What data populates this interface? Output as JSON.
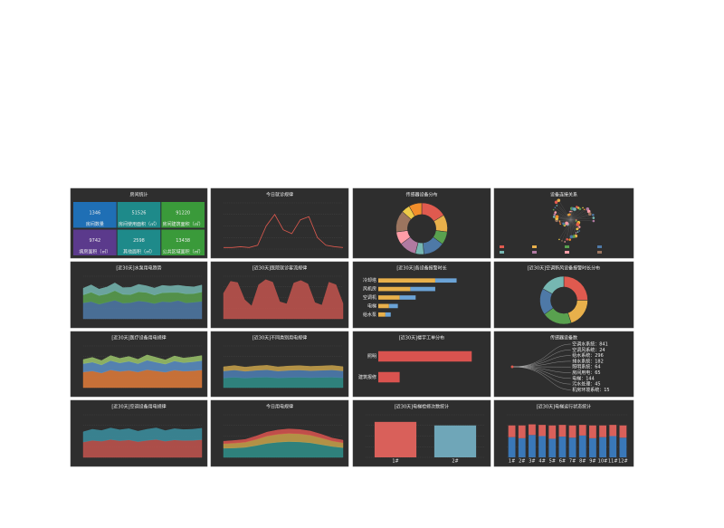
{
  "panels": [
    {
      "title": "房间统计",
      "type": "stats",
      "tiles": [
        {
          "value": 1346,
          "label": "房间数量",
          "color": "#1f6fb5"
        },
        {
          "value": 51526,
          "label": "房间使用面积（㎡）",
          "color": "#1e8a8a"
        },
        {
          "value": 91220,
          "label": "房间建筑面积（㎡）",
          "color": "#3a9a3a"
        },
        {
          "value": 9742,
          "label": "病房面积（㎡）",
          "color": "#5b3a8c"
        },
        {
          "value": 2598,
          "label": "其他面积（㎡）",
          "color": "#1e8a8a"
        },
        {
          "value": 13438,
          "label": "公共区域面积（㎡）",
          "color": "#3a9a3a"
        }
      ]
    },
    {
      "title": "今日就诊规律",
      "type": "line",
      "ylim": [
        0,
        60
      ],
      "series": [
        {
          "color": "#e05a4f",
          "values": [
            2,
            2,
            3,
            2,
            5,
            30,
            45,
            25,
            20,
            38,
            42,
            15,
            5,
            3,
            2
          ]
        }
      ]
    },
    {
      "title": "传感器设备分布",
      "type": "donut",
      "series": [
        {
          "values": [
            6,
            4,
            3,
            5,
            2,
            4,
            3,
            5,
            2,
            3
          ]
        }
      ]
    },
    {
      "title": "设备连接关系",
      "type": "graph"
    },
    {
      "title": "[近30天]水泵用电趋势",
      "type": "area",
      "ylim": [
        0,
        320
      ],
      "series": [
        {
          "color": "#4e79a7",
          "values": [
            120,
            130,
            110,
            125,
            140,
            118,
            122,
            135,
            128,
            115,
            130,
            126,
            138,
            120,
            125,
            132
          ]
        },
        {
          "color": "#59a14f",
          "values": [
            60,
            70,
            65,
            62,
            72,
            66,
            60,
            68,
            70,
            64,
            66,
            72,
            60,
            68,
            65,
            70
          ]
        },
        {
          "color": "#76b7b2",
          "values": [
            50,
            55,
            48,
            52,
            58,
            50,
            54,
            56,
            50,
            52,
            55,
            48,
            54,
            56,
            50,
            52
          ]
        }
      ]
    },
    {
      "title": "[近30天]医院就诊客流规律",
      "type": "area",
      "ylim": [
        0,
        100
      ],
      "series": [
        {
          "color": "#c2544d",
          "values": [
            60,
            88,
            85,
            45,
            30,
            80,
            92,
            86,
            40,
            35,
            84,
            90,
            82,
            38,
            32,
            86,
            80,
            36
          ]
        }
      ]
    },
    {
      "title": "[近30天]各设备报警时长",
      "type": "hbar",
      "xlim": [
        0,
        6000
      ],
      "categories": [
        "冷却塔",
        "风机房",
        "空调机",
        "电梯",
        "给水泵"
      ],
      "series": [
        {
          "color": "#e8b04b",
          "values": [
            3200,
            1800,
            1200,
            600,
            400
          ]
        },
        {
          "color": "#6ba3d6",
          "values": [
            1200,
            1400,
            900,
            500,
            300
          ]
        }
      ]
    },
    {
      "title": "[近30天]空调新风设备报警时长分布",
      "type": "donut",
      "series": [
        {
          "values": [
            25,
            20,
            20,
            18,
            17
          ]
        }
      ]
    },
    {
      "title": "[近30天]医疗设备用电规律",
      "type": "area",
      "ylim": [
        0,
        400
      ],
      "series": [
        {
          "color": "#e07b39",
          "values": [
            150,
            160,
            140,
            170,
            155,
            165,
            150,
            172,
            160,
            148,
            168,
            158,
            162,
            170
          ]
        },
        {
          "color": "#5b8fc7",
          "values": [
            80,
            85,
            78,
            90,
            82,
            88,
            80,
            92,
            84,
            78,
            88,
            82,
            86,
            90
          ]
        },
        {
          "color": "#9bc46b",
          "values": [
            40,
            45,
            42,
            48,
            44,
            46,
            42,
            50,
            46,
            40,
            48,
            44,
            46,
            48
          ]
        }
      ]
    },
    {
      "title": "[近30天]不同类别用电规律",
      "type": "area",
      "ylim": [
        0,
        60000
      ],
      "series": [
        {
          "color": "#2f8f8a",
          "values": [
            14000,
            15000,
            13800,
            14800,
            15200,
            14000,
            14600,
            15000,
            14400,
            14800,
            15100,
            14200
          ]
        },
        {
          "color": "#4d7fb5",
          "values": [
            10000,
            10500,
            9800,
            10200,
            10600,
            9900,
            10300,
            10400,
            10100,
            10200,
            10500,
            10000
          ]
        },
        {
          "color": "#c9a24a",
          "values": [
            6000,
            6300,
            5900,
            6200,
            6400,
            6000,
            6200,
            6300,
            6100,
            6200,
            6300,
            6000
          ]
        }
      ]
    },
    {
      "title": "[近30天]楼宇工单分布",
      "type": "hbar",
      "xlim": [
        0,
        40
      ],
      "categories": [
        "照明",
        "建筑报修"
      ],
      "series": [
        {
          "color": "#d9534f",
          "values": [
            35,
            8
          ]
        }
      ]
    },
    {
      "title": "传感器设备数",
      "type": "list",
      "items": [
        "空调水系统：841",
        "空调风系统：24",
        "给水系统：296",
        "排水系统：182",
        "照明系统：64",
        "房间用电：65",
        "电梯：144",
        "污水处理：45",
        "机房环境系统：15"
      ]
    },
    {
      "title": "[近30天]空调设备用电规律",
      "type": "area",
      "ylim": [
        0,
        500
      ],
      "series": [
        {
          "color": "#c2544d",
          "values": [
            180,
            200,
            190,
            210,
            195,
            205,
            185,
            200,
            210,
            190,
            205,
            198,
            200,
            208
          ]
        },
        {
          "color": "#3b8fa0",
          "values": [
            120,
            130,
            125,
            135,
            128,
            132,
            122,
            130,
            136,
            124,
            132,
            128,
            130,
            134
          ]
        }
      ]
    },
    {
      "title": "今日用电规律",
      "type": "area",
      "ylim": [
        0,
        14000
      ],
      "series": [
        {
          "color": "#2f8f8a",
          "values": [
            3000,
            3100,
            3300,
            3900,
            4600,
            5000,
            5200,
            5100,
            4800,
            4200,
            3600,
            3200
          ]
        },
        {
          "color": "#c9a24a",
          "values": [
            1500,
            1600,
            1700,
            2000,
            2400,
            2600,
            2700,
            2650,
            2500,
            2200,
            1800,
            1600
          ]
        },
        {
          "color": "#d9534f",
          "values": [
            800,
            850,
            900,
            1100,
            1300,
            1400,
            1450,
            1420,
            1350,
            1200,
            950,
            850
          ]
        }
      ]
    },
    {
      "title": "[近30天]电梯检修次数统计",
      "type": "bar",
      "ylim": [
        0,
        120
      ],
      "categories": [
        "1#",
        "2#"
      ],
      "series": [
        {
          "color": "#d9605a",
          "values": [
            100,
            0
          ]
        },
        {
          "color": "#6fa6b8",
          "values": [
            0,
            90
          ]
        }
      ]
    },
    {
      "title": "[近30天]电梯运行状态统计",
      "type": "bar",
      "ylim": [
        0,
        80
      ],
      "categories": [
        "1#",
        "2#",
        "3#",
        "4#",
        "5#",
        "6#",
        "7#",
        "8#",
        "9#",
        "10#",
        "11#",
        "12#"
      ],
      "series": [
        {
          "color": "#3a78b8",
          "values": [
            38,
            36,
            42,
            40,
            35,
            39,
            37,
            41,
            36,
            38,
            40,
            37
          ]
        },
        {
          "color": "#d9605a",
          "values": [
            22,
            24,
            20,
            21,
            25,
            22,
            23,
            20,
            24,
            22,
            21,
            23
          ]
        }
      ]
    }
  ]
}
